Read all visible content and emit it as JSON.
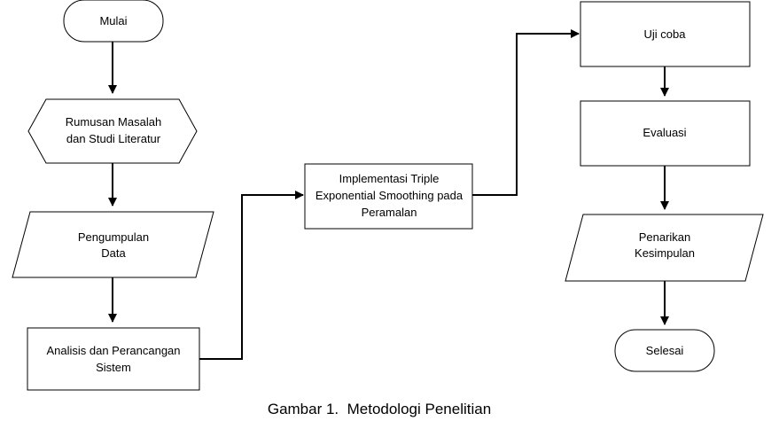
{
  "diagram": {
    "nodes": {
      "mulai": "Mulai",
      "rumusan_line1": "Rumusan Masalah",
      "rumusan_line2": "dan Studi Literatur",
      "pengumpulan_line1": "Pengumpulan",
      "pengumpulan_line2": "Data",
      "analisis_line1": "Analisis dan Perancangan",
      "analisis_line2": "Sistem",
      "implementasi_line1": "Implementasi Triple",
      "implementasi_line2": "Exponential Smoothing pada",
      "implementasi_line3": "Peramalan",
      "uji_coba": "Uji coba",
      "evaluasi": "Evaluasi",
      "penarikan_line1": "Penarikan",
      "penarikan_line2": "Kesimpulan",
      "selesai": "Selesai"
    },
    "caption": "Gambar 1.  Metodologi Penelitian"
  }
}
